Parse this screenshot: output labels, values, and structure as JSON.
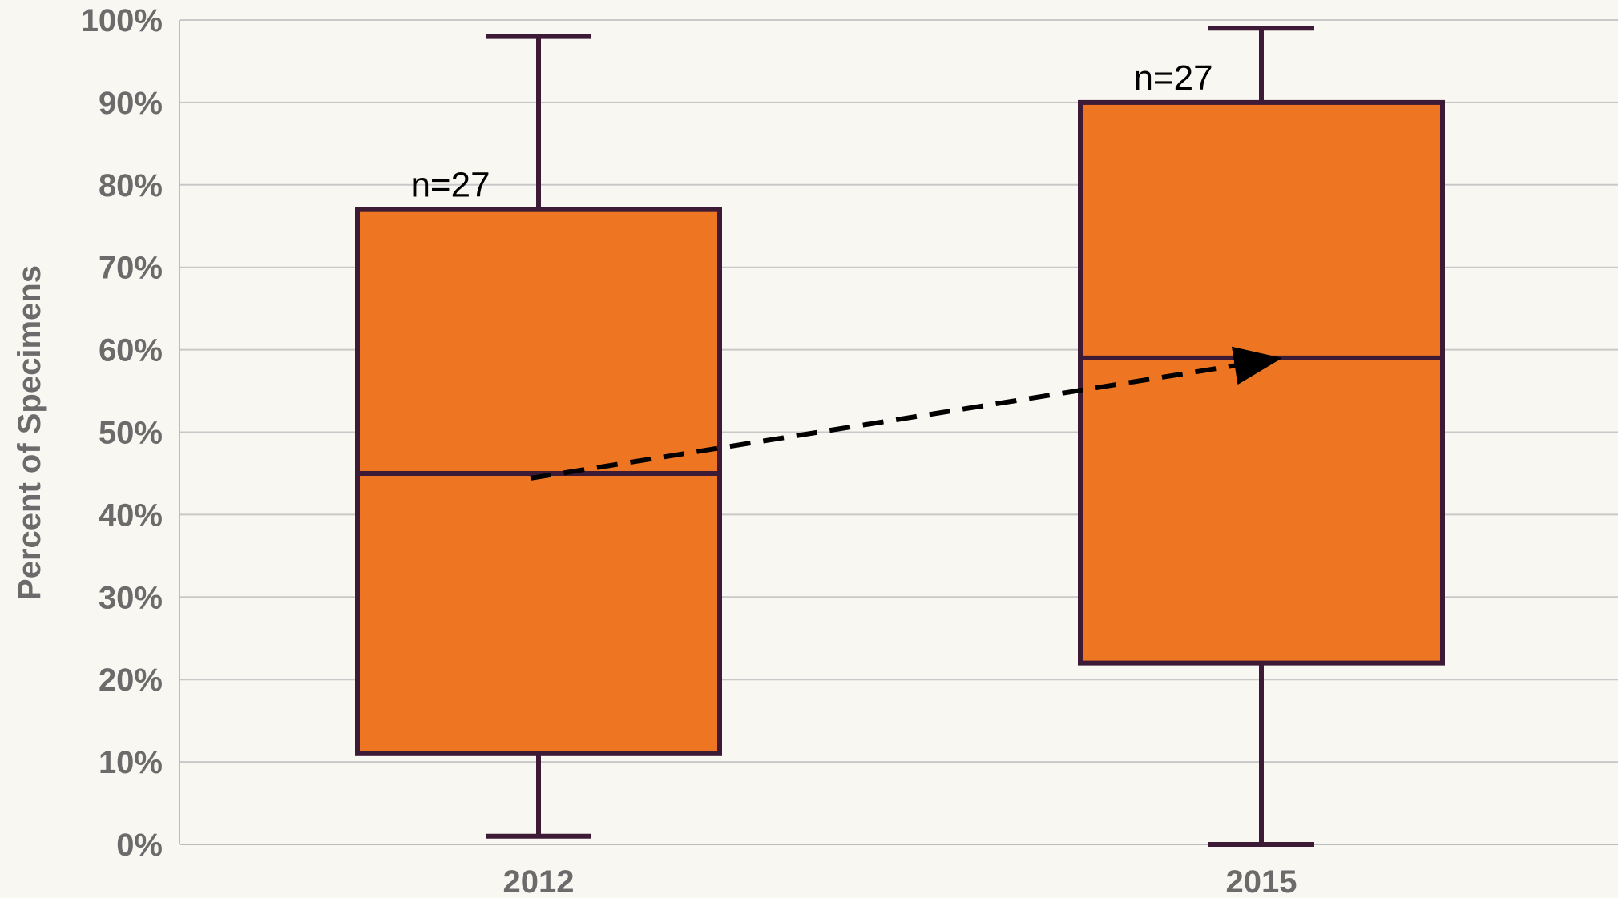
{
  "chart_data": {
    "type": "box",
    "ylabel": "Percent of Specimens",
    "ylim": [
      0,
      100
    ],
    "yticks": [
      "0%",
      "10%",
      "20%",
      "30%",
      "40%",
      "50%",
      "60%",
      "70%",
      "80%",
      "90%",
      "100%"
    ],
    "grid": true,
    "categories": [
      "2012",
      "2015"
    ],
    "boxes": [
      {
        "category": "2012",
        "min": 1,
        "q1": 11,
        "median": 45,
        "q3": 77,
        "max": 98,
        "n_label": "n=27"
      },
      {
        "category": "2015",
        "min": 0,
        "q1": 22,
        "median": 59,
        "q3": 90,
        "max": 99,
        "n_label": "n=27"
      }
    ],
    "trend_arrow": {
      "from": "2012",
      "to": "2015",
      "style": "dashed"
    },
    "colors": {
      "box_fill": "#ee7623",
      "box_stroke": "#3d1a35",
      "grid": "#c8c8c8",
      "axis": "#bdbdbd",
      "arrow": "#000000"
    }
  }
}
